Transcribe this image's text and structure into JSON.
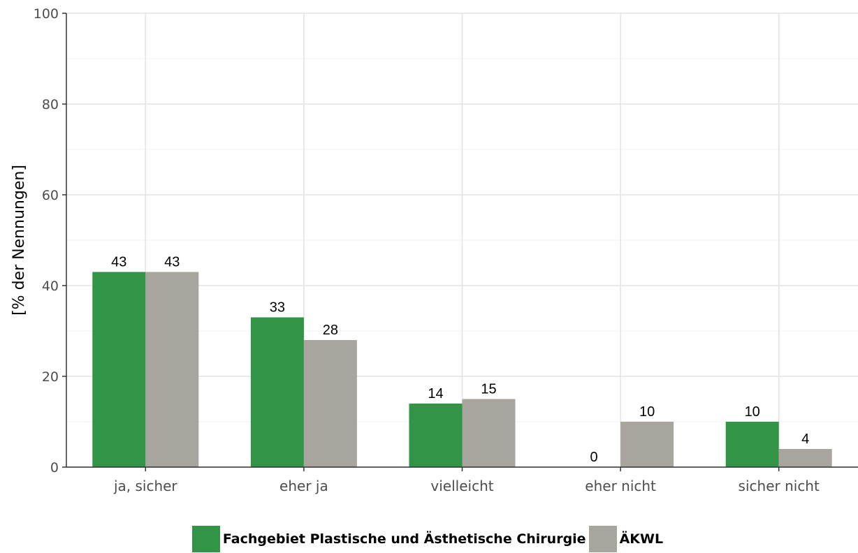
{
  "chart_data": {
    "type": "bar",
    "categories": [
      "ja, sicher",
      "eher ja",
      "vielleicht",
      "eher nicht",
      "sicher nicht"
    ],
    "series": [
      {
        "name": "Fachgebiet Plastische und Ästhetische Chirurgie",
        "values": [
          43,
          33,
          14,
          0,
          10
        ],
        "labels": [
          "43",
          "33",
          "14",
          "0",
          "10"
        ],
        "color": "#319446"
      },
      {
        "name": "ÄKWL",
        "values": [
          43,
          28,
          15,
          10,
          4
        ],
        "labels": [
          "43",
          "28",
          "15",
          "10",
          "4"
        ],
        "color": "#a7a59e"
      }
    ],
    "ylabel": "[% der Nennungen]",
    "ylim": [
      0,
      100
    ],
    "yticks": [
      0,
      20,
      40,
      60,
      80,
      100
    ],
    "grid": true,
    "legend_position": "bottom"
  }
}
